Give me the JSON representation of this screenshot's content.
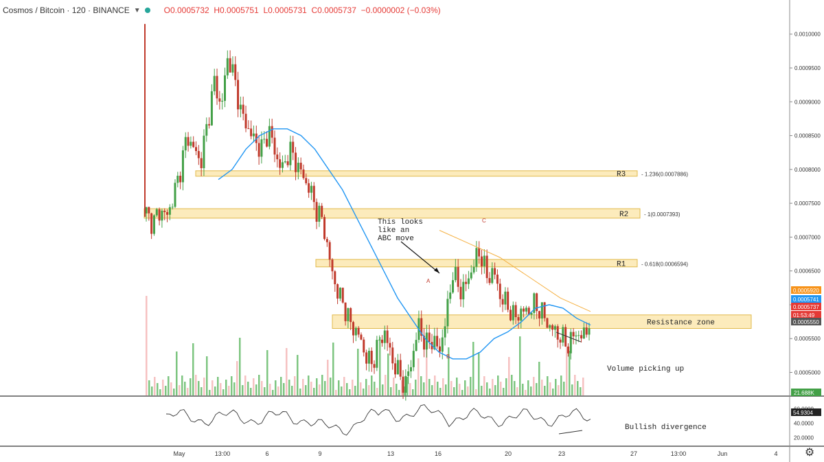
{
  "header": {
    "symbol": "Cosmos / Bitcoin · 120 · BINANCE",
    "open": "O0.0005732",
    "high": "H0.0005751",
    "low": "L0.0005731",
    "close": "C0.0005737",
    "change": "−0.0000002 (−0.03%)",
    "status_color": "#26a69a"
  },
  "chart_data": {
    "type": "candlestick",
    "ylim": [
      0.000465,
      0.00102
    ],
    "y_ticks": [
      "0.0010000",
      "0.0009500",
      "0.0009000",
      "0.0008500",
      "0.0008000",
      "0.0007500",
      "0.0007000",
      "0.0006500",
      "0.0006000",
      "0.0005500",
      "0.0005000"
    ],
    "y_tick_values": [
      0.001,
      0.00095,
      0.0009,
      0.00085,
      0.0008,
      0.00075,
      0.0007,
      0.00065,
      0.0006,
      0.00055,
      0.0005
    ],
    "x_ticks": [
      "May",
      "13:00",
      "6",
      "9",
      "13",
      "16",
      "20",
      "23",
      "27",
      "13:00",
      "Jun",
      "4"
    ],
    "ohlc_path": [
      0.000735,
      0.00072,
      0.00074,
      0.00073,
      0.00076,
      0.0008,
      0.00085,
      0.00083,
      0.00081,
      0.00087,
      0.00093,
      0.00089,
      0.00097,
      0.00093,
      0.00088,
      0.00086,
      0.00084,
      0.00083,
      0.00086,
      0.00082,
      0.0008,
      0.00083,
      0.00081,
      0.00079,
      0.00077,
      0.00074,
      0.00072,
      0.00066,
      0.00062,
      0.0006,
      0.00057,
      0.00056,
      0.00053,
      0.00051,
      0.00054,
      0.00056,
      0.00052,
      0.0005,
      0.00048,
      0.00052,
      0.00057,
      0.00054,
      0.00055,
      0.00053,
      0.00058,
      0.00065,
      0.00062,
      0.00063,
      0.00066,
      0.00068,
      0.00064,
      0.00065,
      0.00061,
      0.0006,
      0.00058,
      0.00059,
      0.00059,
      0.0006,
      0.00059,
      0.00057,
      0.00056,
      0.00055,
      0.00054,
      0.00056,
      0.00055,
      0.000574
    ],
    "ma_line": [
      0.000785,
      0.0008,
      0.00083,
      0.00085,
      0.00086,
      0.00086,
      0.00085,
      0.00083,
      0.0008,
      0.00077,
      0.00073,
      0.00069,
      0.00065,
      0.00061,
      0.00058,
      0.00055,
      0.00053,
      0.00052,
      0.00052,
      0.00053,
      0.00055,
      0.00056,
      0.000575,
      0.000595,
      0.0006,
      0.000595,
      0.00058,
      0.00057
    ],
    "trend_line": [
      0.00071,
      0.00069,
      0.00067,
      0.00064,
      0.00061,
      0.00059
    ],
    "levels": [
      {
        "name": "R3",
        "fib": "1.236(0.0007886)",
        "low": 0.00079,
        "high": 0.000798
      },
      {
        "name": "R2",
        "fib": "1(0.0007393)",
        "low": 0.000728,
        "high": 0.000742
      },
      {
        "name": "R1",
        "fib": "0.618(0.0006594)",
        "low": 0.000656,
        "high": 0.000667
      }
    ],
    "resistance_zone": {
      "label": "Resistance zone",
      "low": 0.000565,
      "high": 0.000585
    },
    "price_tags": [
      {
        "value": "0.0005920",
        "color": "#f7931a"
      },
      {
        "value": "0.0005741",
        "color": "#2196f3"
      },
      {
        "value": "0.0005737",
        "color": "#e53935"
      },
      {
        "value": "01:53:49",
        "color": "#e53935"
      },
      {
        "value": "0.0005550",
        "color": "#555555"
      }
    ],
    "volume_tag": "21.688K",
    "rsi": {
      "value": "54.9304",
      "ticks": [
        "60.0000",
        "40.0000",
        "20.0000"
      ],
      "tick_values": [
        60,
        40,
        20
      ],
      "ylim": [
        10,
        75
      ]
    },
    "annotations": {
      "abc_note": [
        "This looks",
        "like an",
        "ABC move"
      ],
      "label_a": "A",
      "label_b": "B",
      "label_c": "C",
      "volume_note": "Volume picking up",
      "divergence_note": "Bullish divergence"
    },
    "colors": {
      "up": "#43a047",
      "down": "#c0392b",
      "ma": "#2196f3",
      "trend": "#f5b041",
      "zone_fill": "#fbe7b0",
      "zone_stroke": "#e0b84a"
    }
  }
}
